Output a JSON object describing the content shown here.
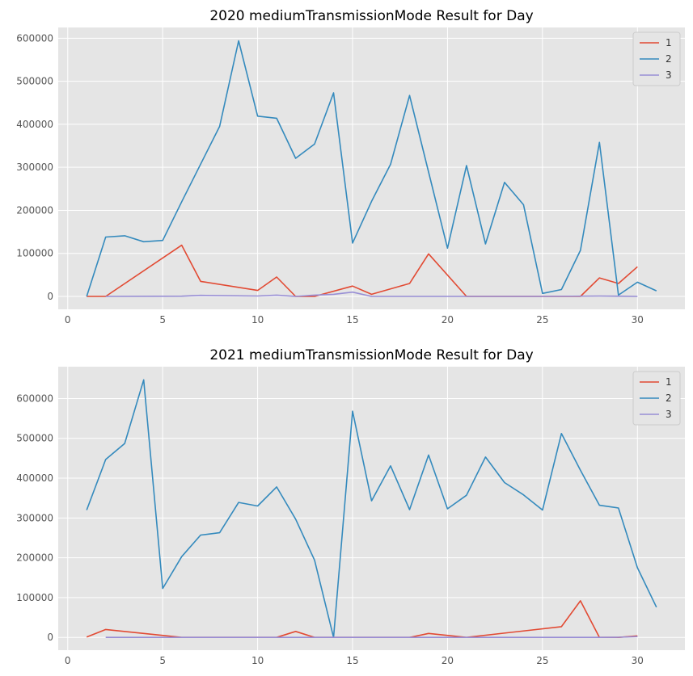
{
  "chart_data": [
    {
      "type": "line",
      "title": "2020 mediumTransmissionMode Result for Day",
      "xlabel": "",
      "ylabel": "",
      "xlim": [
        -0.5,
        32.5
      ],
      "ylim": [
        -30000,
        625000
      ],
      "xticks": [
        0,
        5,
        10,
        15,
        20,
        25,
        30
      ],
      "yticks": [
        0,
        100000,
        200000,
        300000,
        400000,
        500000,
        600000
      ],
      "grid": true,
      "legend": "top-right",
      "series": [
        {
          "name": "1",
          "color": "#e24a33",
          "x": [
            1,
            2,
            6,
            7,
            10,
            11,
            12,
            13,
            15,
            16,
            18,
            19,
            21,
            27,
            28,
            29,
            30
          ],
          "y": [
            0,
            0,
            119000,
            35000,
            14000,
            45000,
            0,
            0,
            24000,
            5000,
            30000,
            99000,
            0,
            0,
            43000,
            30000,
            69000
          ]
        },
        {
          "name": "2",
          "color": "#348abd",
          "x": [
            1,
            2,
            3,
            4,
            5,
            6,
            8,
            9,
            10,
            11,
            12,
            13,
            14,
            15,
            16,
            17,
            18,
            19,
            20,
            21,
            22,
            23,
            24,
            25,
            26,
            27,
            28,
            29,
            30,
            31
          ],
          "y": [
            0,
            138000,
            141000,
            127000,
            130000,
            220000,
            395000,
            594000,
            419000,
            414000,
            321000,
            354000,
            473000,
            124000,
            221000,
            307000,
            467000,
            289000,
            112000,
            304000,
            122000,
            265000,
            213000,
            7000,
            16000,
            107000,
            358000,
            3000,
            33000,
            13000
          ]
        },
        {
          "name": "3",
          "color": "#988ed5",
          "x": [
            2,
            6,
            7,
            10,
            11,
            12,
            13,
            14,
            15,
            16,
            17,
            20,
            25,
            28,
            29,
            30
          ],
          "y": [
            0,
            500,
            2500,
            1000,
            3000,
            0,
            3000,
            5000,
            10000,
            0,
            0,
            0,
            0,
            1000,
            500,
            0
          ]
        }
      ]
    },
    {
      "type": "line",
      "title": "2021 mediumTransmissionMode Result for Day",
      "xlabel": "",
      "ylabel": "",
      "xlim": [
        -0.5,
        32.5
      ],
      "ylim": [
        -32000,
        680000
      ],
      "xticks": [
        0,
        5,
        10,
        15,
        20,
        25,
        30
      ],
      "yticks": [
        0,
        100000,
        200000,
        300000,
        400000,
        500000,
        600000
      ],
      "grid": true,
      "legend": "top-right",
      "series": [
        {
          "name": "1",
          "color": "#e24a33",
          "x": [
            1,
            2,
            6,
            11,
            12,
            13,
            18,
            19,
            21,
            26,
            27,
            28,
            29,
            30
          ],
          "y": [
            1000,
            20000,
            0,
            0,
            15000,
            0,
            0,
            10000,
            0,
            27000,
            92000,
            0,
            0,
            4000
          ]
        },
        {
          "name": "2",
          "color": "#348abd",
          "x": [
            1,
            2,
            3,
            4,
            5,
            6,
            7,
            8,
            9,
            10,
            11,
            12,
            13,
            14,
            15,
            16,
            17,
            18,
            19,
            20,
            21,
            22,
            23,
            24,
            25,
            26,
            27,
            28,
            29,
            30,
            31
          ],
          "y": [
            320000,
            447000,
            487000,
            647000,
            123000,
            203000,
            257000,
            263000,
            339000,
            330000,
            378000,
            297000,
            194000,
            0,
            568000,
            343000,
            431000,
            321000,
            458000,
            323000,
            357000,
            453000,
            389000,
            358000,
            320000,
            512000,
            420000,
            332000,
            325000,
            175000,
            76000
          ]
        },
        {
          "name": "3",
          "color": "#988ed5",
          "x": [
            2,
            6,
            10,
            15,
            20,
            25,
            28,
            29,
            30
          ],
          "y": [
            0,
            0,
            0,
            0,
            0,
            0,
            0,
            500,
            2000
          ]
        }
      ]
    }
  ]
}
